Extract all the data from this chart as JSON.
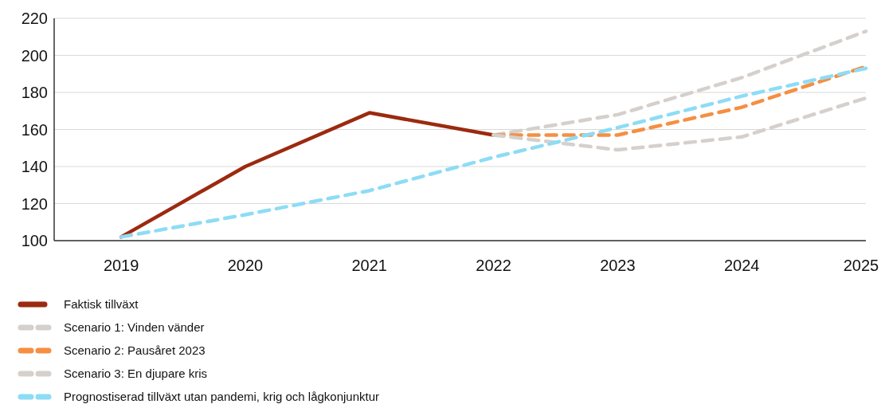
{
  "chart_data": {
    "type": "line",
    "x": [
      2019,
      2020,
      2021,
      2022,
      2023,
      2024,
      2025
    ],
    "xlim": [
      2018.46,
      2025
    ],
    "xticks": [
      2019,
      2020,
      2021,
      2022,
      2023,
      2024,
      2025
    ],
    "ylim": [
      100,
      220
    ],
    "yticks": [
      100,
      120,
      140,
      160,
      180,
      200,
      220
    ],
    "grid": "y",
    "legend": "bottom left",
    "series": [
      {
        "name": "Faktisk tillväxt",
        "color": "#9b2a10",
        "line_style": "solid",
        "values": [
          102,
          140,
          169,
          157,
          null,
          null,
          null
        ]
      },
      {
        "name": "Scenario 1: Vinden vänder",
        "color": "#d5d0cc",
        "line_style": "dashed",
        "values": [
          null,
          null,
          null,
          157,
          168,
          188,
          213
        ]
      },
      {
        "name": "Scenario 2: Pausåret 2023",
        "color": "#f58f42",
        "line_style": "dashed",
        "values": [
          null,
          null,
          null,
          157,
          157,
          172,
          194
        ]
      },
      {
        "name": "Scenario 3: En djupare kris",
        "color": "#d5d0cc",
        "line_style": "dashed",
        "values": [
          null,
          null,
          null,
          157,
          149,
          156,
          177
        ]
      },
      {
        "name": "Prognostiserad tillväxt utan pandemi, krig och lågkonjunktur",
        "color": "#8ddcf5",
        "line_style": "dashed",
        "values": [
          102,
          114,
          127,
          145,
          161,
          178,
          193
        ]
      }
    ]
  }
}
